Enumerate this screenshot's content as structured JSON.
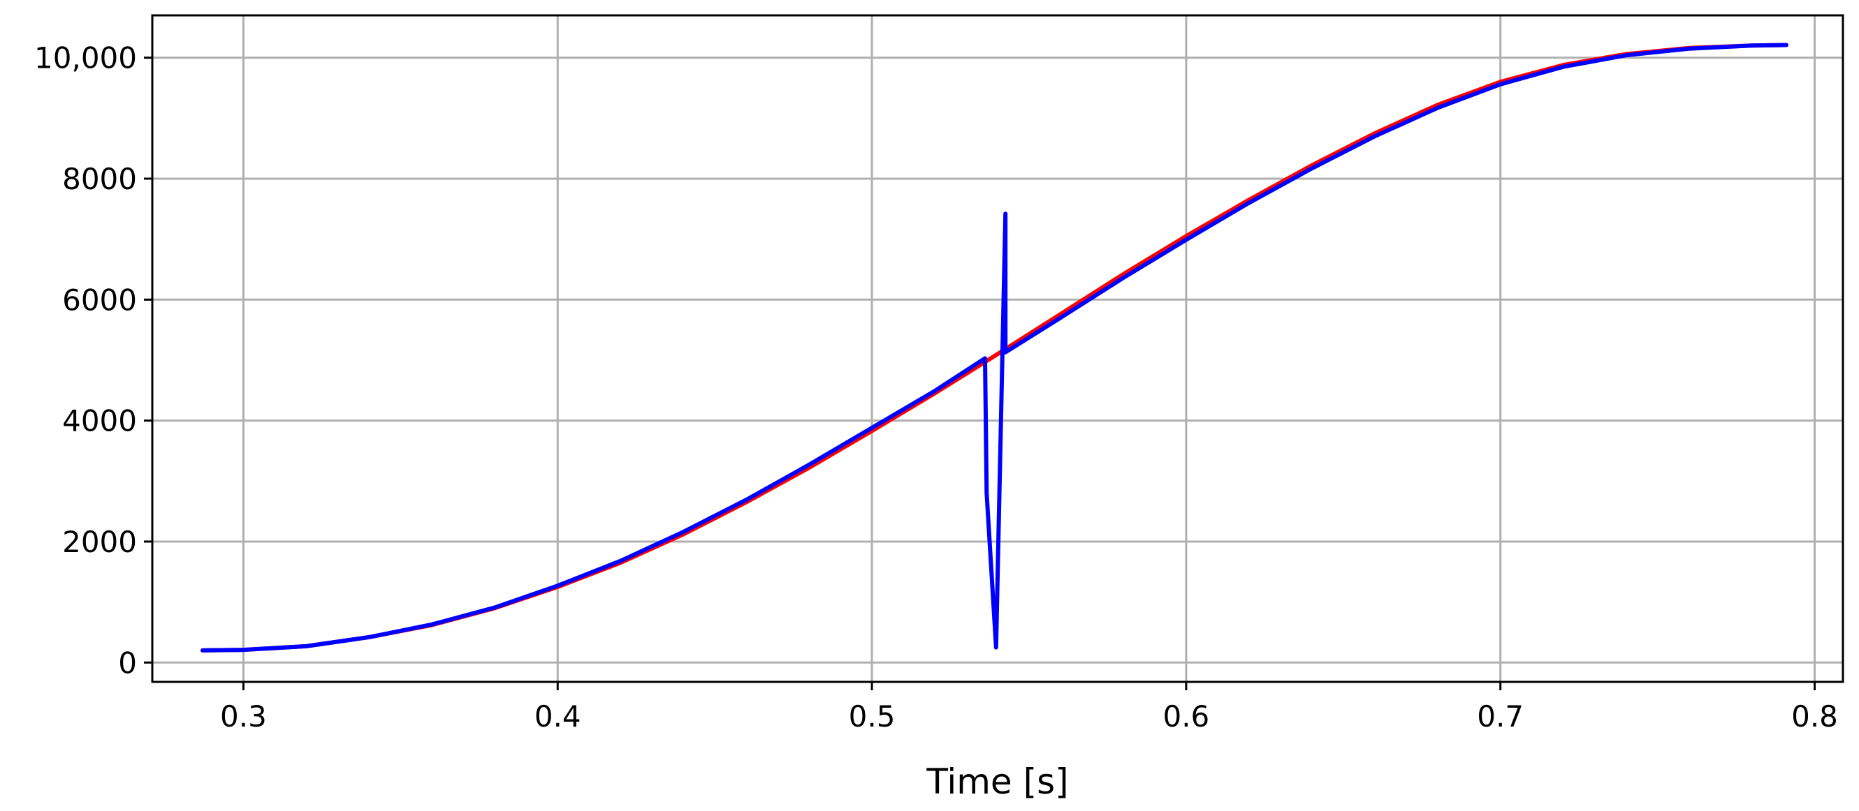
{
  "chart_data": {
    "type": "line",
    "title": "",
    "xlabel": "Time [s]",
    "ylabel": "",
    "xlim": [
      0.271,
      0.809
    ],
    "ylim": [
      -320,
      10700
    ],
    "grid": true,
    "x_ticks": [
      {
        "value": 0.3,
        "label": "0.3"
      },
      {
        "value": 0.4,
        "label": "0.4"
      },
      {
        "value": 0.5,
        "label": "0.5"
      },
      {
        "value": 0.6,
        "label": "0.6"
      },
      {
        "value": 0.7,
        "label": "0.7"
      },
      {
        "value": 0.8,
        "label": "0.8"
      }
    ],
    "y_ticks": [
      {
        "value": 0,
        "label": "0"
      },
      {
        "value": 2000,
        "label": "2000"
      },
      {
        "value": 4000,
        "label": "4000"
      },
      {
        "value": 6000,
        "label": "6000"
      },
      {
        "value": 8000,
        "label": "8000"
      },
      {
        "value": 10000,
        "label": "10,000"
      }
    ],
    "series": [
      {
        "color": "#ff0000",
        "points": [
          [
            0.287,
            200
          ],
          [
            0.3,
            210
          ],
          [
            0.32,
            270
          ],
          [
            0.34,
            420
          ],
          [
            0.36,
            620
          ],
          [
            0.38,
            900
          ],
          [
            0.4,
            1250
          ],
          [
            0.42,
            1650
          ],
          [
            0.44,
            2120
          ],
          [
            0.46,
            2650
          ],
          [
            0.48,
            3220
          ],
          [
            0.5,
            3830
          ],
          [
            0.52,
            4450
          ],
          [
            0.54,
            5100
          ],
          [
            0.56,
            5760
          ],
          [
            0.58,
            6420
          ],
          [
            0.6,
            7050
          ],
          [
            0.62,
            7650
          ],
          [
            0.64,
            8220
          ],
          [
            0.66,
            8750
          ],
          [
            0.68,
            9220
          ],
          [
            0.7,
            9600
          ],
          [
            0.72,
            9880
          ],
          [
            0.74,
            10060
          ],
          [
            0.76,
            10160
          ],
          [
            0.78,
            10200
          ],
          [
            0.791,
            10210
          ]
        ]
      },
      {
        "color": "#0000ff",
        "points": [
          [
            0.287,
            200
          ],
          [
            0.3,
            210
          ],
          [
            0.32,
            270
          ],
          [
            0.34,
            420
          ],
          [
            0.36,
            630
          ],
          [
            0.38,
            910
          ],
          [
            0.4,
            1270
          ],
          [
            0.42,
            1680
          ],
          [
            0.44,
            2160
          ],
          [
            0.46,
            2690
          ],
          [
            0.48,
            3270
          ],
          [
            0.5,
            3880
          ],
          [
            0.52,
            4490
          ],
          [
            0.536,
            5030
          ],
          [
            0.5365,
            2800
          ],
          [
            0.5395,
            250
          ],
          [
            0.5425,
            7420
          ],
          [
            0.5425,
            5130
          ],
          [
            0.56,
            5700
          ],
          [
            0.58,
            6360
          ],
          [
            0.6,
            6990
          ],
          [
            0.62,
            7600
          ],
          [
            0.64,
            8170
          ],
          [
            0.66,
            8700
          ],
          [
            0.68,
            9170
          ],
          [
            0.7,
            9560
          ],
          [
            0.72,
            9850
          ],
          [
            0.74,
            10040
          ],
          [
            0.76,
            10150
          ],
          [
            0.78,
            10200
          ],
          [
            0.791,
            10210
          ]
        ]
      }
    ]
  }
}
